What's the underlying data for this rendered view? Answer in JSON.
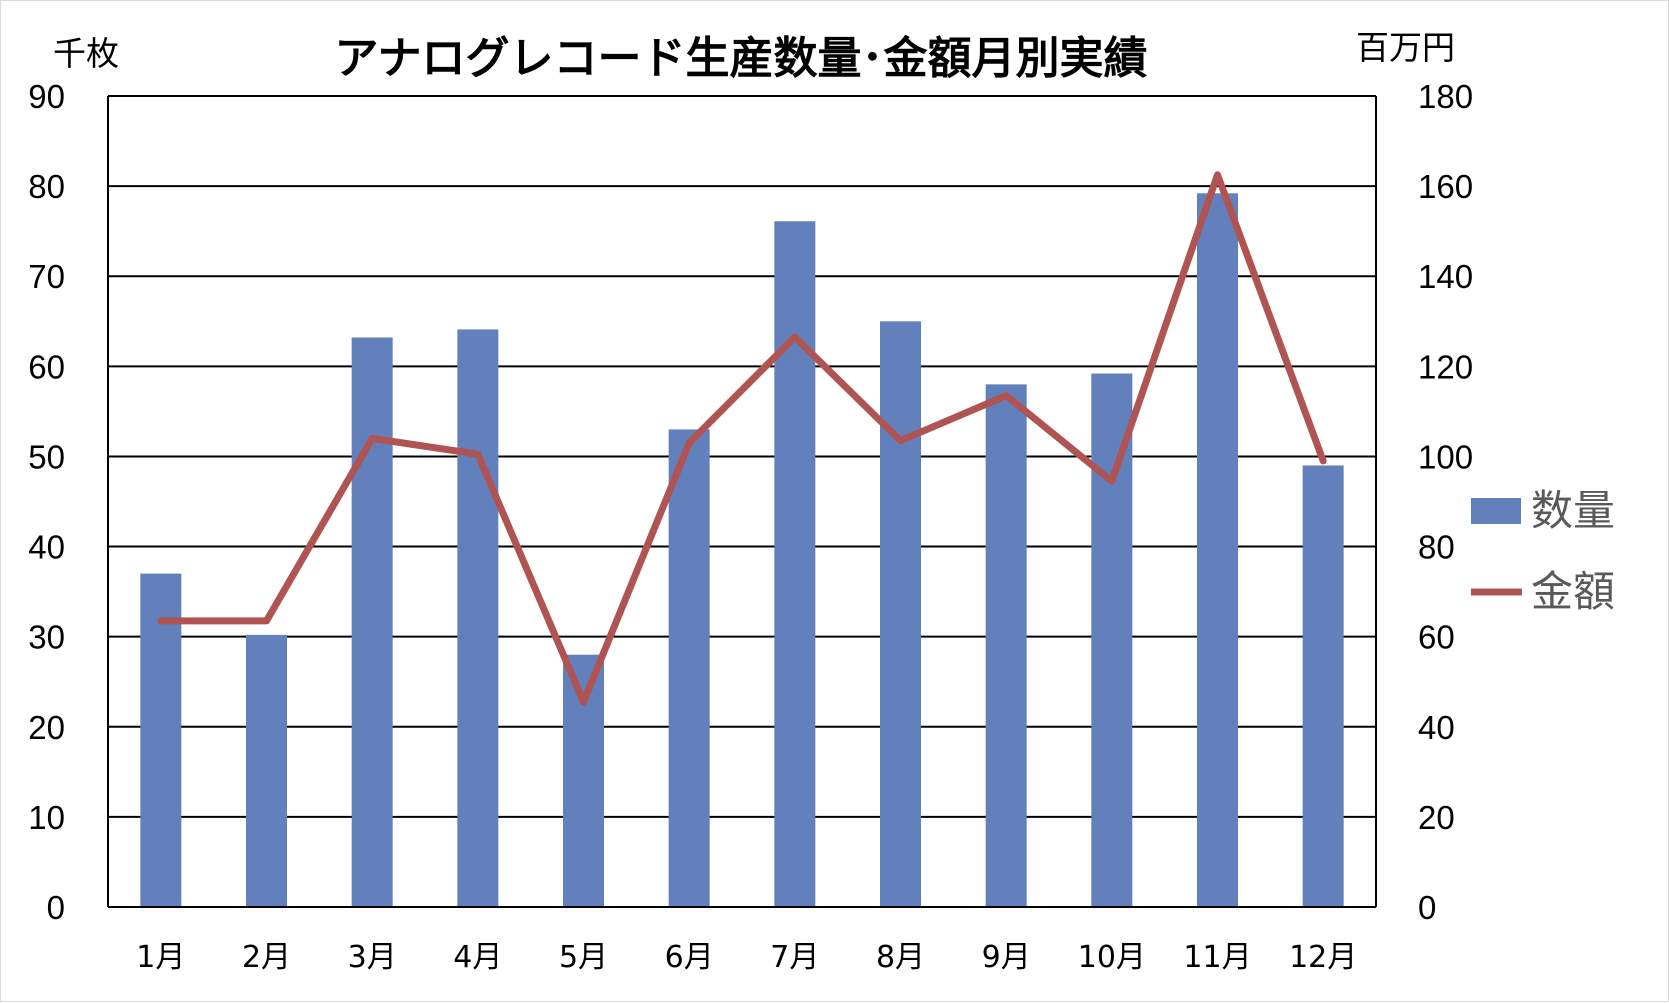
{
  "chart_data": {
    "type": "bar",
    "title": "アナログレコード生産数量･金額月別実績",
    "y_left_unit": "千枚",
    "y_right_unit": "百万円",
    "categories": [
      "1月",
      "2月",
      "3月",
      "4月",
      "5月",
      "6月",
      "7月",
      "8月",
      "9月",
      "10月",
      "11月",
      "12月"
    ],
    "series": [
      {
        "name": "数量",
        "type": "bar",
        "axis": "left",
        "color": "#6280bc",
        "values": [
          37,
          30.2,
          63.2,
          64.1,
          28,
          53,
          76.1,
          65,
          58,
          59.2,
          79.2,
          49
        ]
      },
      {
        "name": "金額",
        "type": "line",
        "axis": "right",
        "color": "#b05453",
        "values": [
          63.5,
          63.5,
          104,
          100.5,
          45.5,
          103,
          126.5,
          103.5,
          113.5,
          94.5,
          162.5,
          99
        ]
      }
    ],
    "y_left": {
      "min": 0,
      "max": 90,
      "ticks": [
        0,
        10,
        20,
        30,
        40,
        50,
        60,
        70,
        80,
        90
      ]
    },
    "y_right": {
      "min": 0,
      "max": 180,
      "ticks": [
        0,
        20,
        40,
        60,
        80,
        100,
        120,
        140,
        160,
        180
      ]
    },
    "grid": true,
    "legend_position": "right"
  }
}
